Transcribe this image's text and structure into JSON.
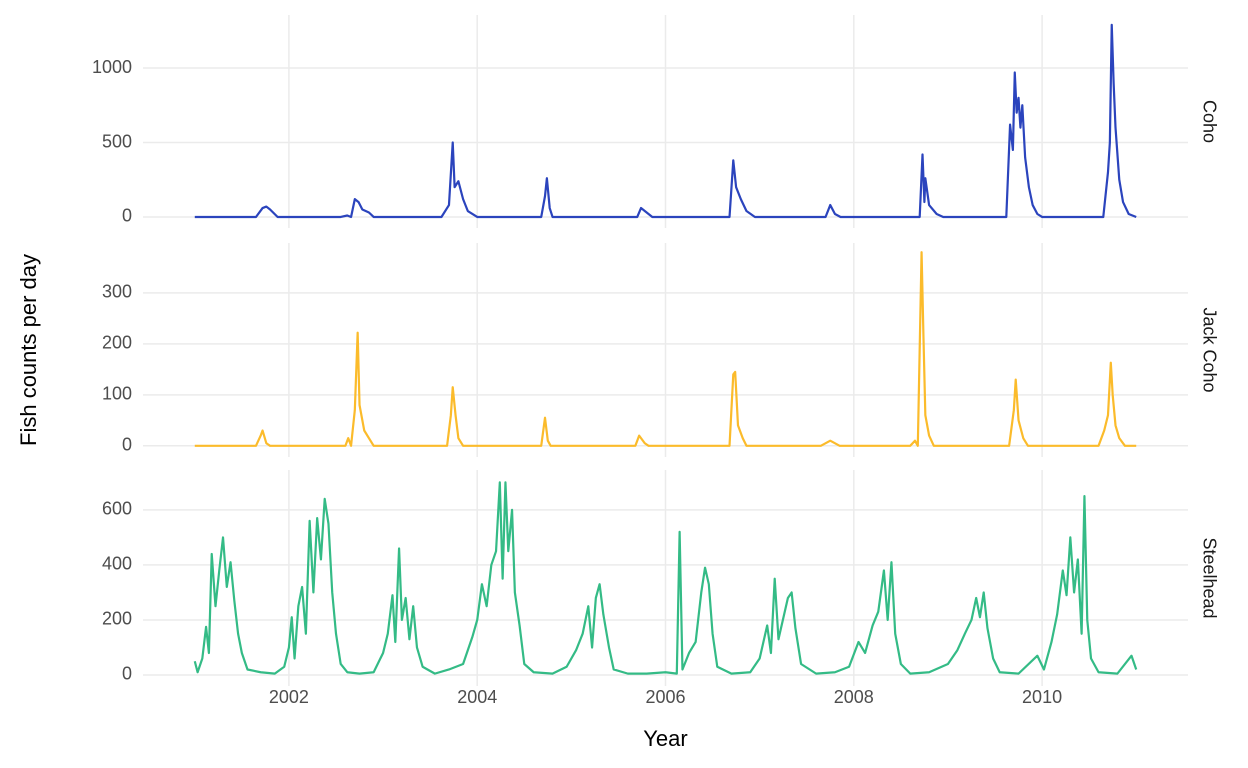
{
  "chart_data": [
    {
      "type": "line",
      "title": "Coho",
      "color": "#2b44bd",
      "x": [
        2001,
        2001.65,
        2001.72,
        2001.76,
        2001.8,
        2001.88,
        2002.55,
        2002.62,
        2002.66,
        2002.7,
        2002.74,
        2002.78,
        2002.85,
        2002.9,
        2003.62,
        2003.7,
        2003.74,
        2003.76,
        2003.8,
        2003.85,
        2003.9,
        2004,
        2004.68,
        2004.72,
        2004.74,
        2004.77,
        2004.8,
        2005.7,
        2005.74,
        2005.8,
        2005.86,
        2006.68,
        2006.72,
        2006.75,
        2006.8,
        2006.86,
        2006.95,
        2007.7,
        2007.75,
        2007.8,
        2007.86,
        2008.7,
        2008.73,
        2008.75,
        2008.76,
        2008.8,
        2008.88,
        2008.95,
        2009.62,
        2009.66,
        2009.69,
        2009.71,
        2009.73,
        2009.75,
        2009.77,
        2009.79,
        2009.82,
        2009.86,
        2009.9,
        2009.95,
        2010,
        2010.65,
        2010.7,
        2010.72,
        2010.74,
        2010.76,
        2010.78,
        2010.82,
        2010.86,
        2010.92,
        2011
      ],
      "values": [
        0,
        0,
        60,
        70,
        50,
        0,
        0,
        10,
        0,
        120,
        100,
        50,
        30,
        0,
        0,
        80,
        500,
        200,
        240,
        120,
        40,
        0,
        0,
        140,
        260,
        60,
        0,
        0,
        60,
        30,
        0,
        0,
        380,
        200,
        120,
        40,
        0,
        0,
        80,
        20,
        0,
        0,
        420,
        100,
        260,
        80,
        20,
        0,
        0,
        620,
        450,
        970,
        700,
        800,
        600,
        750,
        400,
        200,
        80,
        20,
        0,
        0,
        300,
        500,
        1290,
        900,
        600,
        250,
        100,
        20,
        0
      ],
      "xlim": [
        2000.45,
        2011.55
      ],
      "xticks": [
        2002,
        2004,
        2006,
        2008,
        2010
      ],
      "ylim": [
        -74,
        1356
      ],
      "yticks": [
        0,
        500,
        1000
      ],
      "grid": true
    },
    {
      "type": "line",
      "title": "Jack Coho",
      "color": "#fbbb2b",
      "ylabel": "Fish counts per day",
      "x": [
        2001,
        2001.65,
        2001.7,
        2001.72,
        2001.76,
        2001.8,
        2002.6,
        2002.63,
        2002.66,
        2002.7,
        2002.73,
        2002.75,
        2002.8,
        2002.85,
        2002.9,
        2003.68,
        2003.72,
        2003.74,
        2003.77,
        2003.8,
        2003.85,
        2004.68,
        2004.72,
        2004.75,
        2004.78,
        2005.68,
        2005.72,
        2005.78,
        2005.82,
        2006.68,
        2006.72,
        2006.74,
        2006.77,
        2006.82,
        2006.86,
        2007.65,
        2007.75,
        2007.85,
        2008.6,
        2008.65,
        2008.68,
        2008.72,
        2008.74,
        2008.76,
        2008.8,
        2008.85,
        2009.65,
        2009.7,
        2009.72,
        2009.75,
        2009.8,
        2009.85,
        2010.6,
        2010.66,
        2010.7,
        2010.73,
        2010.75,
        2010.78,
        2010.82,
        2010.88,
        2011
      ],
      "values": [
        0,
        0,
        20,
        30,
        5,
        0,
        0,
        15,
        0,
        70,
        222,
        80,
        30,
        15,
        0,
        0,
        60,
        115,
        60,
        15,
        0,
        0,
        55,
        10,
        0,
        0,
        20,
        5,
        0,
        0,
        140,
        145,
        40,
        15,
        0,
        0,
        10,
        0,
        0,
        10,
        0,
        380,
        215,
        60,
        20,
        0,
        0,
        70,
        130,
        50,
        15,
        0,
        0,
        30,
        60,
        163,
        100,
        40,
        15,
        0,
        0
      ],
      "xlim": [
        2000.45,
        2011.55
      ],
      "xticks": [
        2002,
        2004,
        2006,
        2008,
        2010
      ],
      "ylim": [
        -22,
        398
      ],
      "yticks": [
        0,
        100,
        200,
        300
      ],
      "grid": true
    },
    {
      "type": "line",
      "title": "Steelhead",
      "color": "#34bb86",
      "xlabel": "Year",
      "x": [
        2001,
        2001.03,
        2001.08,
        2001.12,
        2001.15,
        2001.18,
        2001.22,
        2001.26,
        2001.3,
        2001.34,
        2001.38,
        2001.42,
        2001.46,
        2001.5,
        2001.56,
        2001.7,
        2001.85,
        2001.95,
        2002,
        2002.03,
        2002.06,
        2002.1,
        2002.14,
        2002.18,
        2002.22,
        2002.26,
        2002.3,
        2002.34,
        2002.38,
        2002.42,
        2002.46,
        2002.5,
        2002.55,
        2002.62,
        2002.75,
        2002.9,
        2003,
        2003.05,
        2003.1,
        2003.13,
        2003.17,
        2003.2,
        2003.24,
        2003.28,
        2003.32,
        2003.36,
        2003.42,
        2003.55,
        2003.7,
        2003.85,
        2003.95,
        2004,
        2004.05,
        2004.1,
        2004.15,
        2004.2,
        2004.24,
        2004.27,
        2004.3,
        2004.33,
        2004.37,
        2004.4,
        2004.45,
        2004.5,
        2004.6,
        2004.8,
        2004.95,
        2005.05,
        2005.12,
        2005.18,
        2005.22,
        2005.26,
        2005.3,
        2005.34,
        2005.4,
        2005.45,
        2005.6,
        2005.8,
        2006,
        2006.12,
        2006.15,
        2006.18,
        2006.25,
        2006.32,
        2006.38,
        2006.42,
        2006.46,
        2006.5,
        2006.55,
        2006.7,
        2006.9,
        2007,
        2007.08,
        2007.12,
        2007.16,
        2007.2,
        2007.26,
        2007.3,
        2007.34,
        2007.38,
        2007.44,
        2007.6,
        2007.8,
        2007.95,
        2008.05,
        2008.12,
        2008.2,
        2008.26,
        2008.32,
        2008.36,
        2008.4,
        2008.44,
        2008.5,
        2008.6,
        2008.8,
        2009,
        2009.1,
        2009.18,
        2009.25,
        2009.3,
        2009.34,
        2009.38,
        2009.42,
        2009.48,
        2009.55,
        2009.75,
        2009.95,
        2010.02,
        2010.1,
        2010.16,
        2010.22,
        2010.26,
        2010.3,
        2010.34,
        2010.38,
        2010.42,
        2010.45,
        2010.48,
        2010.52,
        2010.6,
        2010.8,
        2010.95,
        2011
      ],
      "values": [
        50,
        10,
        60,
        175,
        80,
        440,
        250,
        380,
        500,
        320,
        410,
        270,
        150,
        80,
        20,
        10,
        5,
        30,
        100,
        210,
        60,
        250,
        320,
        150,
        560,
        300,
        570,
        420,
        640,
        550,
        300,
        150,
        40,
        10,
        5,
        10,
        80,
        150,
        290,
        120,
        460,
        200,
        280,
        130,
        250,
        100,
        30,
        5,
        20,
        40,
        140,
        200,
        330,
        250,
        400,
        450,
        700,
        350,
        700,
        450,
        600,
        300,
        180,
        40,
        10,
        5,
        30,
        90,
        150,
        250,
        100,
        280,
        330,
        220,
        100,
        20,
        5,
        5,
        10,
        5,
        520,
        20,
        80,
        120,
        300,
        390,
        330,
        150,
        30,
        5,
        10,
        60,
        180,
        80,
        350,
        130,
        220,
        280,
        300,
        170,
        40,
        5,
        10,
        30,
        120,
        80,
        180,
        230,
        380,
        200,
        410,
        150,
        40,
        5,
        10,
        40,
        90,
        150,
        200,
        280,
        210,
        300,
        170,
        60,
        10,
        5,
        70,
        20,
        120,
        220,
        380,
        290,
        500,
        300,
        420,
        150,
        650,
        200,
        60,
        10,
        5,
        70,
        20
      ],
      "xlim": [
        2000.45,
        2011.55
      ],
      "xticks": [
        2002,
        2004,
        2006,
        2008,
        2010
      ],
      "ylim": [
        -40,
        745
      ],
      "yticks": [
        0,
        200,
        400,
        600
      ],
      "grid": true
    }
  ]
}
